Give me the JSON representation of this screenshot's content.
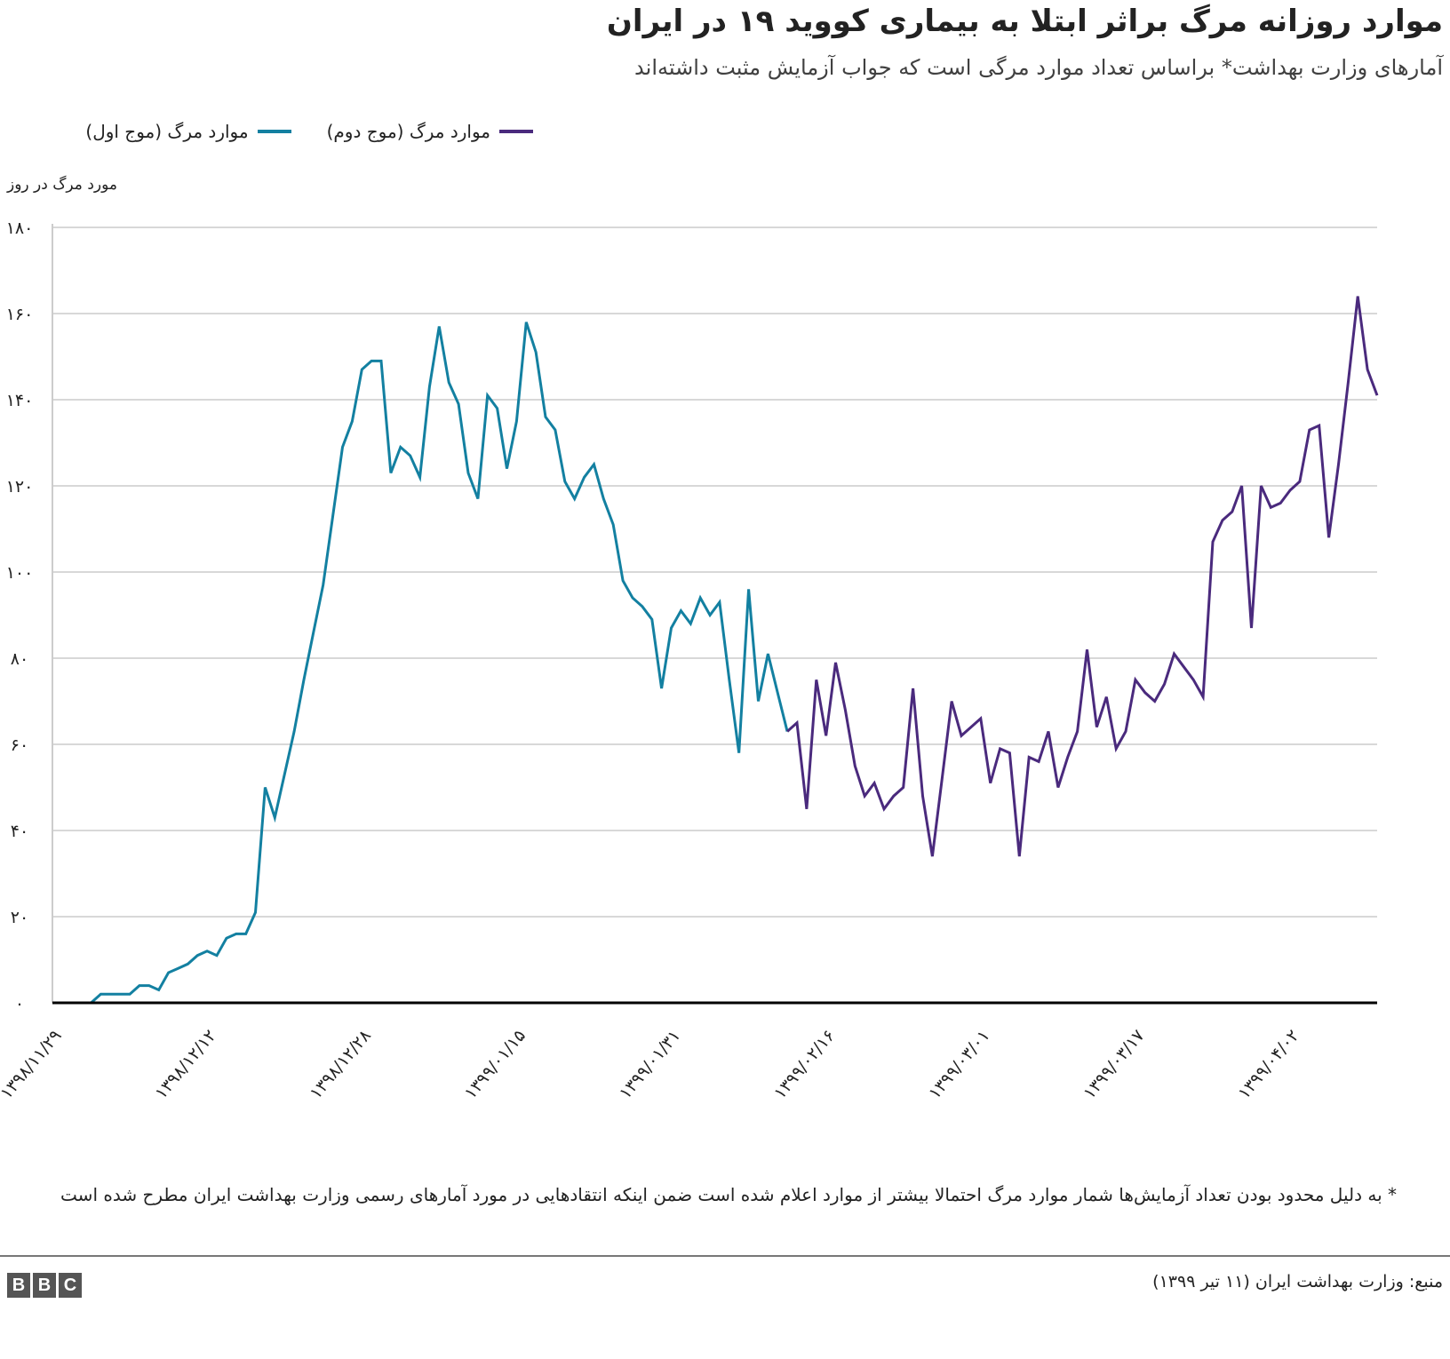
{
  "title": "موارد روزانه مرگ براثر ابتلا به بیماری کووید ۱۹ در ایران",
  "subtitle": "آمارهای وزارت بهداشت* براساس تعداد موارد مرگی است که جواب آزمایش مثبت داشته‌اند",
  "legend": {
    "wave1": "موارد مرگ (موج اول)",
    "wave2": "موارد مرگ (موج دوم)"
  },
  "footnote": "* به دلیل محدود بودن تعداد آزمایش‌ها شمار موارد مرگ احتمالا بیشتر از موارد اعلام شده است ضمن اینکه انتقادهایی در مورد آمارهای رسمی وزارت بهداشت ایران مطرح شده است",
  "source": "منبع: وزارت بهداشت ایران (۱۱ تیر ۱۳۹۹)",
  "logo": [
    "B",
    "B",
    "C"
  ],
  "colors": {
    "wave1": "#1380A1",
    "wave2": "#4A2A7D",
    "grid": "#cccccc",
    "axis": "#000000"
  },
  "chart_data": {
    "type": "line",
    "title": "موارد روزانه مرگ براثر ابتلا به بیماری کووید ۱۹ در ایران",
    "ylabel": "مورد مرگ در روز",
    "xlabel": "",
    "ylim": [
      0,
      180
    ],
    "yticks": [
      0,
      20,
      40,
      60,
      80,
      100,
      120,
      140,
      160,
      180
    ],
    "ytick_labels": [
      "۰",
      "۲۰",
      "۴۰",
      "۶۰",
      "۸۰",
      "۱۰۰",
      "۱۲۰",
      "۱۴۰",
      "۱۶۰",
      "۱۸۰"
    ],
    "grid": true,
    "legend_position": "top-left",
    "x_day_count": 138,
    "xticks": [
      {
        "day": 1,
        "label": "۱۳۹۸/۱۱/۲۹"
      },
      {
        "day": 17,
        "label": "۱۳۹۸/۱۲/۱۲"
      },
      {
        "day": 33,
        "label": "۱۳۹۸/۱۲/۲۸"
      },
      {
        "day": 49,
        "label": "۱۳۹۹/۰۱/۱۵"
      },
      {
        "day": 65,
        "label": "۱۳۹۹/۰۱/۳۱"
      },
      {
        "day": 81,
        "label": "۱۳۹۹/۰۲/۱۶"
      },
      {
        "day": 97,
        "label": "۱۳۹۹/۰۳/۰۱"
      },
      {
        "day": 113,
        "label": "۱۳۹۹/۰۳/۱۷"
      },
      {
        "day": 129,
        "label": "۱۳۹۹/۰۴/۰۲"
      }
    ],
    "series": [
      {
        "name": "موارد مرگ (موج اول)",
        "start_day": 0,
        "values": [
          0,
          0,
          0,
          0,
          0,
          2,
          2,
          2,
          2,
          4,
          4,
          3,
          7,
          8,
          9,
          11,
          12,
          11,
          15,
          16,
          16,
          21,
          50,
          43,
          53,
          63,
          75,
          86,
          97,
          113,
          129,
          135,
          147,
          149,
          149,
          123,
          129,
          127,
          122,
          143,
          157,
          144,
          139,
          123,
          117,
          141,
          138,
          124,
          135,
          158,
          151,
          136,
          133,
          121,
          117,
          122,
          125,
          117,
          111,
          98,
          94,
          92,
          89,
          73,
          87,
          91,
          88,
          94,
          90,
          93,
          75,
          58,
          96,
          70,
          81,
          72,
          63
        ]
      },
      {
        "name": "موارد مرگ (موج دوم)",
        "start_day": 76,
        "values": [
          63,
          65,
          45,
          75,
          62,
          79,
          68,
          55,
          48,
          51,
          45,
          48,
          50,
          73,
          48,
          34,
          52,
          70,
          62,
          64,
          66,
          51,
          59,
          58,
          34,
          57,
          56,
          63,
          50,
          57,
          63,
          82,
          64,
          71,
          59,
          63,
          75,
          72,
          70,
          74,
          81,
          78,
          75,
          71,
          107,
          112,
          114,
          120,
          87,
          120,
          115,
          116,
          119,
          121,
          133,
          134,
          108,
          125,
          144,
          164,
          147,
          141
        ]
      }
    ]
  }
}
